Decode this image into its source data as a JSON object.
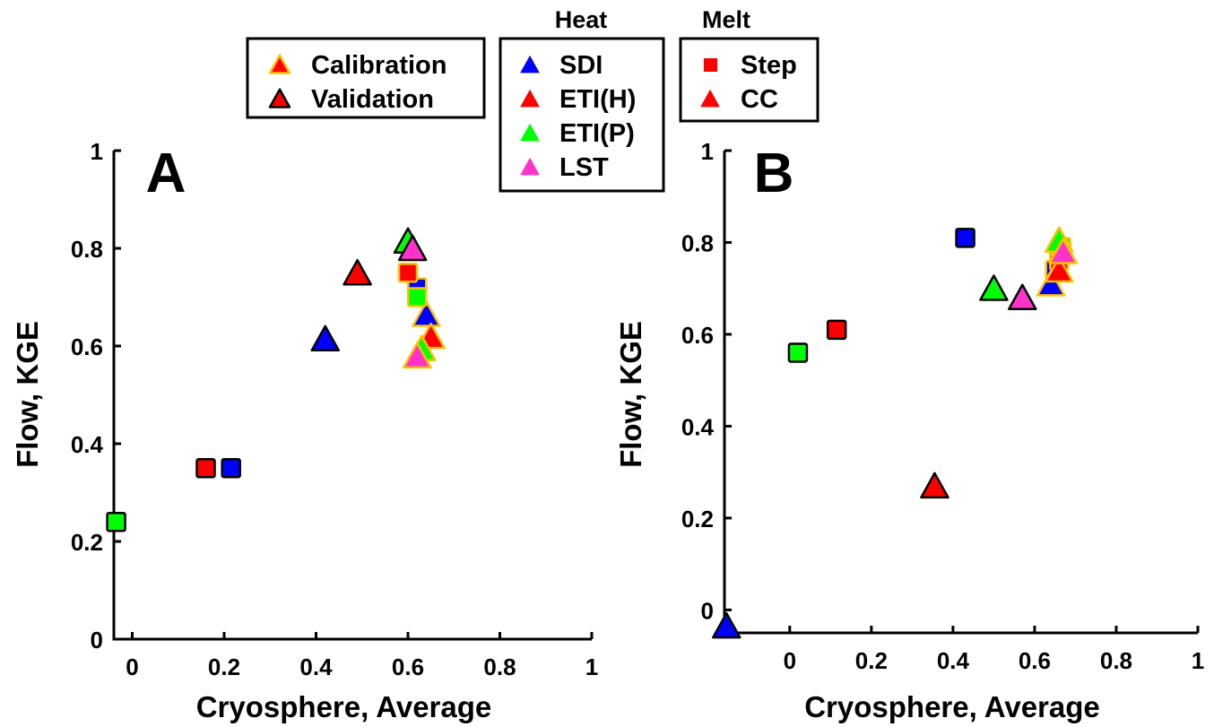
{
  "legends": {
    "dataset": {
      "entries": [
        {
          "label": "Calibration",
          "fill": "#ff0000",
          "edge": "#ffc000"
        },
        {
          "label": "Validation",
          "fill": "#ff0000",
          "edge": "#000000"
        }
      ]
    },
    "heat": {
      "title": "Heat",
      "entries": [
        {
          "label": "SDI",
          "color": "#0000ff"
        },
        {
          "label": "ETI(H)",
          "color": "#ff0000"
        },
        {
          "label": "ETI(P)",
          "color": "#00ff00"
        },
        {
          "label": "LST",
          "color": "#ff33cc"
        }
      ]
    },
    "melt": {
      "title": "Melt",
      "entries": [
        {
          "label": "Step",
          "marker": "square"
        },
        {
          "label": "CC",
          "marker": "triangle"
        }
      ]
    }
  },
  "colors": {
    "SDI": "#0000ff",
    "ETI(H)": "#ff0000",
    "ETI(P)": "#00ff00",
    "LST": "#ff33cc",
    "calibration_edge": "#ffc000",
    "validation_edge": "#000000"
  },
  "chart_data": [
    {
      "type": "scatter",
      "panel": "A",
      "xlabel": "Cryosphere, Average",
      "ylabel": "Flow, KGE",
      "xlim": [
        -0.04,
        1.0
      ],
      "ylim": [
        0,
        1.0
      ],
      "xticks": [
        "0",
        "0.2",
        "0.4",
        "0.6",
        "0.8",
        "1"
      ],
      "yticks": [
        "0",
        "0.2",
        "0.4",
        "0.6",
        "0.8",
        "1"
      ],
      "points": [
        {
          "x": 0.62,
          "y": 0.72,
          "heat": "SDI",
          "melt": "Step",
          "set": "Calibration"
        },
        {
          "x": 0.64,
          "y": 0.66,
          "heat": "SDI",
          "melt": "CC",
          "set": "Calibration"
        },
        {
          "x": 0.65,
          "y": 0.615,
          "heat": "ETI(H)",
          "melt": "CC",
          "set": "Calibration"
        },
        {
          "x": 0.6,
          "y": 0.75,
          "heat": "ETI(H)",
          "melt": "Step",
          "set": "Calibration"
        },
        {
          "x": 0.63,
          "y": 0.59,
          "heat": "ETI(P)",
          "melt": "CC",
          "set": "Calibration"
        },
        {
          "x": 0.62,
          "y": 0.7,
          "heat": "ETI(P)",
          "melt": "Step",
          "set": "Calibration"
        },
        {
          "x": 0.62,
          "y": 0.575,
          "heat": "LST",
          "melt": "CC",
          "set": "Calibration"
        },
        {
          "x": 0.215,
          "y": 0.35,
          "heat": "SDI",
          "melt": "Step",
          "set": "Validation"
        },
        {
          "x": 0.42,
          "y": 0.61,
          "heat": "SDI",
          "melt": "CC",
          "set": "Validation"
        },
        {
          "x": 0.16,
          "y": 0.35,
          "heat": "ETI(H)",
          "melt": "Step",
          "set": "Validation"
        },
        {
          "x": 0.49,
          "y": 0.745,
          "heat": "ETI(H)",
          "melt": "CC",
          "set": "Validation"
        },
        {
          "x": -0.035,
          "y": 0.24,
          "heat": "ETI(P)",
          "melt": "Step",
          "set": "Validation"
        },
        {
          "x": 0.6,
          "y": 0.81,
          "heat": "ETI(P)",
          "melt": "CC",
          "set": "Validation"
        },
        {
          "x": 0.61,
          "y": 0.795,
          "heat": "LST",
          "melt": "CC",
          "set": "Validation"
        }
      ]
    },
    {
      "type": "scatter",
      "panel": "B",
      "xlabel": "Cryosphere, Average",
      "ylabel": "Flow, KGE",
      "xlim": [
        -0.16,
        1.0
      ],
      "ylim": [
        -0.05,
        1.0
      ],
      "xticks": [
        "0",
        "0.2",
        "0.4",
        "0.6",
        "0.8",
        "1"
      ],
      "yticks": [
        "0",
        "0.2",
        "0.4",
        "0.6",
        "0.8",
        "1"
      ],
      "points": [
        {
          "x": 0.65,
          "y": 0.74,
          "heat": "SDI",
          "melt": "Step",
          "set": "Calibration"
        },
        {
          "x": 0.64,
          "y": 0.705,
          "heat": "SDI",
          "melt": "CC",
          "set": "Calibration"
        },
        {
          "x": 0.66,
          "y": 0.76,
          "heat": "ETI(H)",
          "melt": "Step",
          "set": "Calibration"
        },
        {
          "x": 0.66,
          "y": 0.735,
          "heat": "ETI(H)",
          "melt": "CC",
          "set": "Calibration"
        },
        {
          "x": 0.665,
          "y": 0.79,
          "heat": "ETI(P)",
          "melt": "Step",
          "set": "Calibration"
        },
        {
          "x": 0.66,
          "y": 0.8,
          "heat": "ETI(P)",
          "melt": "CC",
          "set": "Calibration"
        },
        {
          "x": 0.67,
          "y": 0.775,
          "heat": "LST",
          "melt": "CC",
          "set": "Calibration"
        },
        {
          "x": 0.43,
          "y": 0.81,
          "heat": "SDI",
          "melt": "Step",
          "set": "Validation"
        },
        {
          "x": -0.155,
          "y": -0.04,
          "heat": "SDI",
          "melt": "CC",
          "set": "Validation"
        },
        {
          "x": 0.115,
          "y": 0.61,
          "heat": "ETI(H)",
          "melt": "Step",
          "set": "Validation"
        },
        {
          "x": 0.355,
          "y": 0.265,
          "heat": "ETI(H)",
          "melt": "CC",
          "set": "Validation"
        },
        {
          "x": 0.02,
          "y": 0.56,
          "heat": "ETI(P)",
          "melt": "Step",
          "set": "Validation"
        },
        {
          "x": 0.5,
          "y": 0.695,
          "heat": "ETI(P)",
          "melt": "CC",
          "set": "Validation"
        },
        {
          "x": 0.57,
          "y": 0.675,
          "heat": "LST",
          "melt": "CC",
          "set": "Validation"
        }
      ]
    }
  ]
}
